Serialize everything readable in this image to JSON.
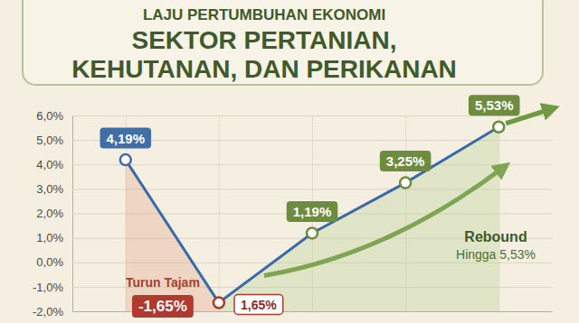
{
  "chart_data": {
    "type": "line",
    "title": [
      "LAJU PERTUMBUHAN EKONOMI",
      "SEKTOR PERTANIAN,",
      "KEHUTANAN, DAN PERIKANAN"
    ],
    "categories": [
      null,
      null,
      null,
      null,
      null
    ],
    "values": [
      4.19,
      -1.65,
      1.19,
      3.25,
      5.53
    ],
    "value_labels": [
      "4,19%",
      "-1,65%",
      "1,19%",
      "3,25%",
      "5,53%"
    ],
    "data_labels": true,
    "color": "#3b6aa8",
    "colors": [
      "#3f6fa8",
      "#b03a2e",
      "#6d8c3e",
      "#6d8c3e",
      "#6d8c3e"
    ],
    "marker": "circle",
    "line_style": "solid",
    "ylim": [
      -2,
      6
    ],
    "yticks": [
      {
        "value": -2,
        "label": "-2,0%"
      },
      {
        "value": -1,
        "label": "-1,0%"
      },
      {
        "value": 0,
        "label": "0,0%"
      },
      {
        "value": 1,
        "label": "1,0%"
      },
      {
        "value": 2,
        "label": "2,0%"
      },
      {
        "value": 3,
        "label": "3,0%"
      },
      {
        "value": 4,
        "label": "4,0%"
      },
      {
        "value": 5,
        "label": "5,0%"
      },
      {
        "value": 6,
        "label": "6,0%"
      }
    ],
    "grid": true,
    "annotations": [
      "Turun Tajam",
      "1,65%",
      "Rebound",
      "Hingga 5,53%"
    ]
  }
}
